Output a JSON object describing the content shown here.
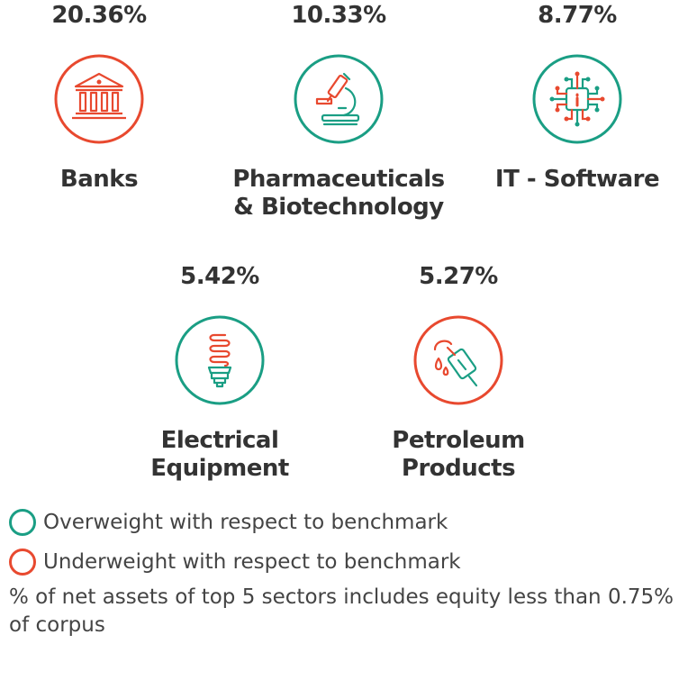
{
  "colors": {
    "overweight": "#1a9e84",
    "underweight": "#e8492f",
    "text": "#333333"
  },
  "sectors": [
    {
      "percent": "20.36%",
      "name_lines": [
        "Banks"
      ],
      "icon": "bank-icon",
      "weight": "underweight"
    },
    {
      "percent": "10.33%",
      "name_lines": [
        "Pharmaceuticals",
        "& Biotechnology"
      ],
      "icon": "microscope-icon",
      "weight": "overweight"
    },
    {
      "percent": "8.77%",
      "name_lines": [
        "IT - Software"
      ],
      "icon": "circuit-chip-icon",
      "weight": "overweight"
    },
    {
      "percent": "5.42%",
      "name_lines": [
        "Electrical",
        "Equipment"
      ],
      "icon": "cfl-bulb-icon",
      "weight": "overweight"
    },
    {
      "percent": "5.27%",
      "name_lines": [
        "Petroleum",
        "Products"
      ],
      "icon": "fuel-nozzle-icon",
      "weight": "underweight"
    }
  ],
  "legend": {
    "overweight_label": "Overweight with respect to benchmark",
    "underweight_label": "Underweight with respect to benchmark"
  },
  "footnote": "% of net assets of top 5 sectors includes equity less than 0.75% of corpus"
}
